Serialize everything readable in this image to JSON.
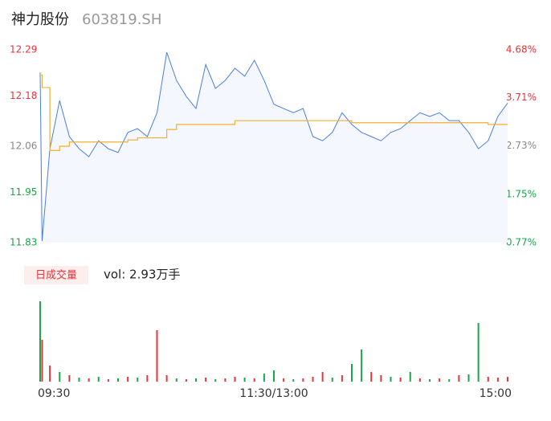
{
  "header": {
    "name": "神力股份",
    "code": "603819.SH"
  },
  "chart_data": {
    "type": "line",
    "x": [
      0,
      1,
      5,
      10,
      15,
      20,
      25,
      30,
      35,
      40,
      45,
      50,
      55,
      60,
      65,
      70,
      75,
      80,
      85,
      90,
      95,
      100,
      105,
      110,
      115,
      120,
      125,
      130,
      135,
      140,
      145,
      150,
      155,
      160,
      165,
      170,
      175,
      180,
      185,
      190,
      195,
      200,
      205,
      210,
      215,
      220,
      225,
      230,
      235,
      240
    ],
    "xlim": [
      0,
      240
    ],
    "xticks": [
      {
        "value": 0,
        "label": "09:30"
      },
      {
        "value": 120,
        "label": "11:30/13:00"
      },
      {
        "value": 240,
        "label": "15:00"
      }
    ],
    "ylim": [
      11.83,
      12.29
    ],
    "yticks": [
      11.83,
      11.95,
      12.06,
      12.18,
      12.29
    ],
    "ytick_colors": [
      "#1aa64a",
      "#1aa64a",
      "#888888",
      "#e8343a",
      "#e8343a"
    ],
    "y2lim": [
      0.77,
      4.68
    ],
    "y2ticks": [
      {
        "value": 0.77,
        "label": "0.77%"
      },
      {
        "value": 1.75,
        "label": "1.75%"
      },
      {
        "value": 2.73,
        "label": "2.73%"
      },
      {
        "value": 3.71,
        "label": "3.71%"
      },
      {
        "value": 4.68,
        "label": "4.68%"
      }
    ],
    "series": [
      {
        "name": "price",
        "color": "#4a7fe0",
        "values": [
          12.236,
          11.834,
          12.054,
          12.169,
          12.083,
          12.054,
          12.035,
          12.073,
          12.054,
          12.045,
          12.093,
          12.102,
          12.083,
          12.14,
          12.284,
          12.217,
          12.179,
          12.15,
          12.255,
          12.198,
          12.217,
          12.246,
          12.227,
          12.265,
          12.217,
          12.16,
          12.15,
          12.14,
          12.15,
          12.083,
          12.073,
          12.093,
          12.14,
          12.112,
          12.093,
          12.083,
          12.073,
          12.093,
          12.102,
          12.121,
          12.14,
          12.131,
          12.14,
          12.121,
          12.121,
          12.093,
          12.054,
          12.073,
          12.131,
          12.163
        ]
      },
      {
        "name": "average",
        "color": "#f0b030",
        "values": [
          12.23,
          12.2,
          12.05,
          12.06,
          12.07,
          12.07,
          12.07,
          12.07,
          12.07,
          12.07,
          12.075,
          12.08,
          12.08,
          12.08,
          12.1,
          12.112,
          12.112,
          12.112,
          12.112,
          12.112,
          12.112,
          12.121,
          12.121,
          12.121,
          12.121,
          12.121,
          12.121,
          12.121,
          12.121,
          12.121,
          12.121,
          12.121,
          12.121,
          12.116,
          12.116,
          12.116,
          12.116,
          12.116,
          12.116,
          12.116,
          12.116,
          12.116,
          12.116,
          12.116,
          12.116,
          12.116,
          12.116,
          12.112,
          12.112,
          12.112
        ]
      }
    ],
    "volume": {
      "legend": "日成交量",
      "label": "vol: 2.93万手",
      "ylim": [
        0,
        103
      ],
      "values": [
        100,
        52,
        20,
        12,
        8,
        5,
        4,
        6,
        3,
        4,
        6,
        5,
        8,
        64,
        8,
        4,
        3,
        4,
        5,
        3,
        4,
        6,
        5,
        4,
        10,
        14,
        4,
        3,
        4,
        6,
        12,
        5,
        8,
        22,
        40,
        12,
        8,
        6,
        5,
        12,
        4,
        3,
        4,
        3,
        8,
        9,
        73,
        6,
        5,
        6
      ],
      "colors": [
        "#1aa64a",
        "#e8343a",
        "#e8343a",
        "#1aa64a",
        "#e8343a",
        "#1aa64a",
        "#e8343a",
        "#1aa64a",
        "#e8343a",
        "#1aa64a",
        "#e8343a",
        "#1aa64a",
        "#e8343a",
        "#e8343a",
        "#e8343a",
        "#1aa64a",
        "#e8343a",
        "#1aa64a",
        "#e8343a",
        "#1aa64a",
        "#e8343a",
        "#e8343a",
        "#1aa64a",
        "#e8343a",
        "#1aa64a",
        "#1aa64a",
        "#e8343a",
        "#1aa64a",
        "#e8343a",
        "#e8343a",
        "#e8343a",
        "#1aa64a",
        "#e8343a",
        "#1aa64a",
        "#1aa64a",
        "#e8343a",
        "#e8343a",
        "#1aa64a",
        "#e8343a",
        "#1aa64a",
        "#e8343a",
        "#1aa64a",
        "#e8343a",
        "#1aa64a",
        "#e8343a",
        "#1aa64a",
        "#1aa64a",
        "#e8343a",
        "#e8343a",
        "#e8343a"
      ]
    }
  }
}
